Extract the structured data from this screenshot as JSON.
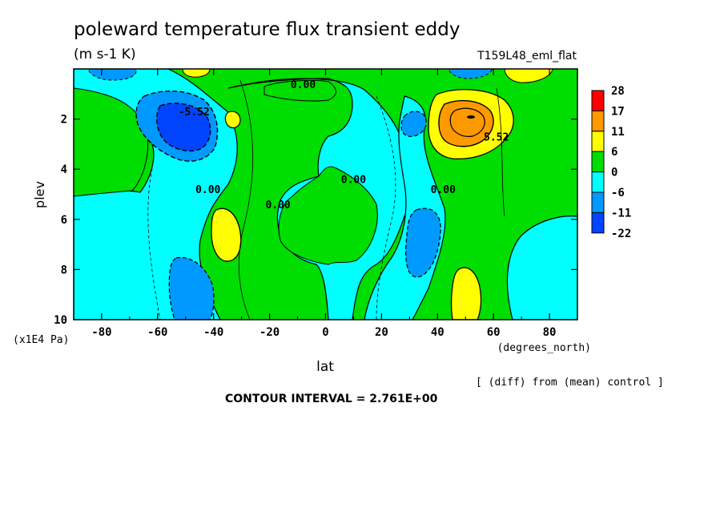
{
  "header": {
    "title": "poleward temperature flux transient eddy",
    "units": "(m s-1 K)",
    "run_label": "T159L48_eml_flat"
  },
  "footer": {
    "note": "[ (diff) from (mean) control ]",
    "contour_interval": "CONTOUR INTERVAL = 2.761E+00"
  },
  "chart_data": {
    "type": "heatmap",
    "title": "poleward temperature flux transient eddy",
    "xlabel": "lat",
    "xunit": "(degrees_north)",
    "ylabel": "plev",
    "yunit": "(x1E4 Pa)",
    "xlim": [
      -90,
      90
    ],
    "ylim": [
      0,
      10
    ],
    "y_inverted": true,
    "x_ticks": [
      -80,
      -60,
      -40,
      -20,
      0,
      20,
      40,
      60,
      80
    ],
    "y_ticks": [
      2,
      4,
      6,
      8,
      10
    ],
    "colorbar": {
      "levels": [
        "28",
        "17",
        "11",
        "6",
        "0",
        "-6",
        "-11",
        "-22"
      ],
      "colors": [
        "#ff0000",
        "#ff9900",
        "#ffff00",
        "#00dd00",
        "#00ffff",
        "#0099ff",
        "#0044ff"
      ]
    },
    "contour_labels": [
      {
        "text": "0.00",
        "lat": -8,
        "plev": 0.6
      },
      {
        "text": "-5.52",
        "lat": -47,
        "plev": 1.7
      },
      {
        "text": "0.00",
        "lat": -42,
        "plev": 4.8
      },
      {
        "text": "0.00",
        "lat": -17,
        "plev": 5.4
      },
      {
        "text": "0.00",
        "lat": 10,
        "plev": 4.4
      },
      {
        "text": "0.00",
        "lat": 42,
        "plev": 4.8
      },
      {
        "text": "5.52",
        "lat": 61,
        "plev": 2.7
      }
    ],
    "features": [
      {
        "sign": "negative",
        "lat": -48,
        "plev": 2.4,
        "peak": -11
      },
      {
        "sign": "positive",
        "lat": 51,
        "plev": 2.2,
        "peak": 17
      },
      {
        "sign": "positive",
        "lat": -36,
        "plev": 6.6,
        "peak": 6
      },
      {
        "sign": "negative",
        "lat": 34,
        "plev": 7.2,
        "peak": -6
      },
      {
        "sign": "negative",
        "lat": -51,
        "plev": 8.9,
        "peak": -6
      },
      {
        "sign": "positive",
        "lat": 48,
        "plev": 9.2,
        "peak": 6
      }
    ]
  }
}
